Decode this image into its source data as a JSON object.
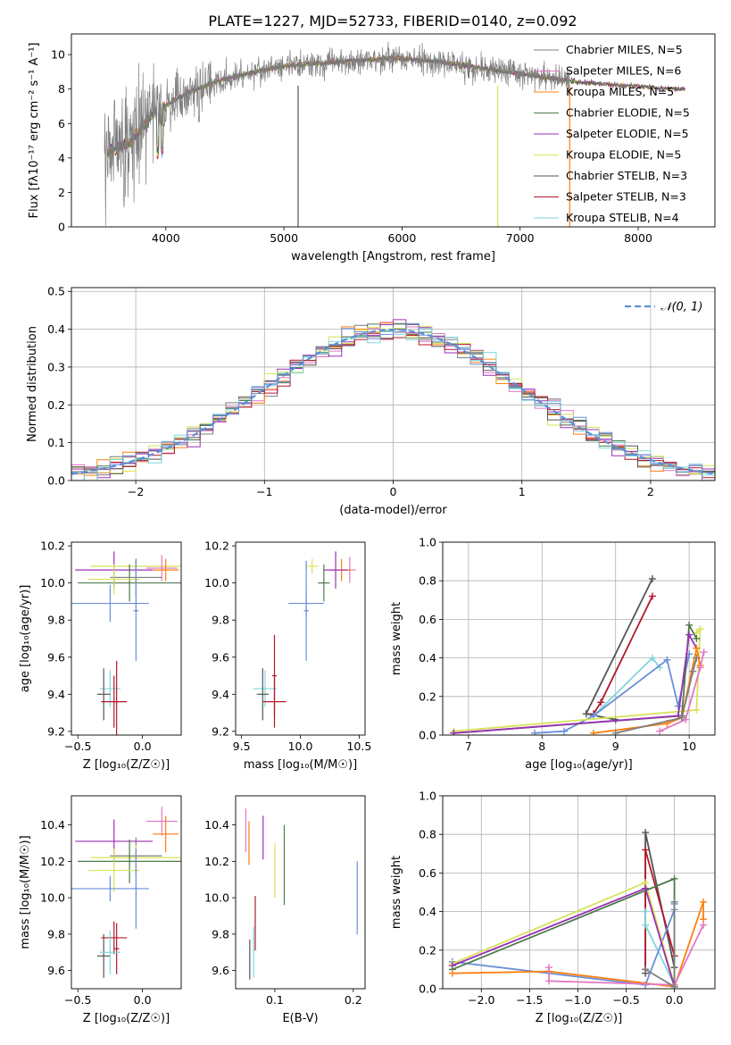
{
  "figure_title": "PLATE=1227, MJD=52733, FIBERID=0140, z=0.092",
  "colors": {
    "Chabrier MILES": "#7f7f7f",
    "Salpeter MILES": "#e377c2",
    "Kroupa MILES": "#ff7f0e",
    "Chabrier ELODIE": "#4c7a4c",
    "Salpeter ELODIE": "#9b30b5",
    "Kroupa ELODIE": "#d8e25a",
    "Chabrier STELIB": "#555555",
    "Salpeter STELIB": "#b2182b",
    "Kroupa STELIB": "#7fd7dd",
    "extra": "#6a8fd8",
    "normal": "#5a8fd6",
    "grid": "#b0b0b0"
  },
  "chart_data": [
    {
      "id": "spectrum",
      "type": "line",
      "title": "PLATE=1227, MJD=52733, FIBERID=0140, z=0.092",
      "xlabel": "wavelength [Angstrom, rest frame]",
      "ylabel": "Flux [fλ10⁻¹⁷ erg cm⁻² s⁻¹ A⁻¹]",
      "xlim": [
        3200,
        8650
      ],
      "ylim": [
        0,
        11.2
      ],
      "xticks": [
        "4000",
        "5000",
        "6000",
        "7000",
        "8000"
      ],
      "yticks": [
        "0",
        "2",
        "4",
        "6",
        "8",
        "10"
      ],
      "grid": false,
      "legend_position": "right",
      "legend": [
        "Chabrier MILES, N_SSP=5",
        "Salpeter MILES, N_SSP=6",
        "Kroupa MILES, N_SSP=5",
        "Chabrier ELODIE, N_SSP=5",
        "Salpeter ELODIE, N_SSP=5",
        "Kroupa ELODIE, N_SSP=5",
        "Chabrier STELIB, N_SSP=3",
        "Salpeter STELIB, N_SSP=3",
        "Kroupa STELIB, N_SSP=4"
      ],
      "continuum_x": [
        3500,
        3700,
        3900,
        4100,
        4300,
        4500,
        4700,
        4900,
        5100,
        5300,
        5500,
        5700,
        5900,
        6100,
        6300,
        6500,
        6700,
        6900,
        7100,
        7300,
        7500,
        7700,
        7900,
        8100,
        8300
      ],
      "continuum_y": [
        4.3,
        4.9,
        6.6,
        7.5,
        8.1,
        8.6,
        8.9,
        9.2,
        9.4,
        9.5,
        9.6,
        9.7,
        9.8,
        9.7,
        9.6,
        9.4,
        9.2,
        9.0,
        8.8,
        8.6,
        8.4,
        8.3,
        8.2,
        8.1,
        8.0
      ]
    },
    {
      "id": "residual_hist",
      "type": "line",
      "xlabel": "(data-model)/error",
      "ylabel": "Normed distribution",
      "xlim": [
        -2.5,
        2.5
      ],
      "ylim": [
        0,
        0.51
      ],
      "xticks": [
        "−2",
        "−1",
        "0",
        "1",
        "2"
      ],
      "yticks": [
        "0.0",
        "0.1",
        "0.2",
        "0.3",
        "0.4",
        "0.5"
      ],
      "grid": true,
      "legend_position": "top-right",
      "legend": [
        "𝒩(0, 1)"
      ],
      "curve": "normal(0,1) density"
    },
    {
      "id": "age_vs_Z",
      "type": "scatter",
      "xlabel": "Z [log₁₀(Z/Z☉)]",
      "ylabel": "age  [log₁₀(age/yr)]",
      "xlim": [
        -0.55,
        0.3
      ],
      "ylim": [
        9.18,
        10.22
      ],
      "xticks": [
        "−0.5",
        "0.0"
      ],
      "yticks": [
        "9.2",
        "9.4",
        "9.6",
        "9.8",
        "10.0",
        "10.2"
      ],
      "points": [
        {
          "x": -0.05,
          "xerr": 0.35,
          "y": 10.09,
          "yerr": 0.04,
          "series": "Kroupa ELODIE"
        },
        {
          "x": 0.15,
          "xerr": 0.12,
          "y": 10.08,
          "yerr": 0.07,
          "series": "Salpeter MILES"
        },
        {
          "x": 0.18,
          "xerr": 0.1,
          "y": 10.07,
          "yerr": 0.06,
          "series": "Kroupa MILES"
        },
        {
          "x": -0.22,
          "xerr": 0.3,
          "y": 10.07,
          "yerr": 0.1,
          "series": "Salpeter ELODIE"
        },
        {
          "x": -0.1,
          "xerr": 0.4,
          "y": 10.0,
          "yerr": 0.1,
          "series": "Chabrier ELODIE"
        },
        {
          "x": -0.05,
          "xerr": 0.2,
          "y": 10.03,
          "yerr": 0.1,
          "series": "Chabrier MILES"
        },
        {
          "x": -0.22,
          "xerr": 0.2,
          "y": 10.02,
          "yerr": 0.08,
          "series": "Kroupa ELODIE"
        },
        {
          "x": -0.25,
          "xerr": 0.3,
          "y": 9.89,
          "yerr": 0.1,
          "series": "extra"
        },
        {
          "x": -0.05,
          "xerr": 0.02,
          "y": 9.85,
          "yerr": 0.27,
          "series": "extra"
        },
        {
          "x": -0.25,
          "xerr": 0.08,
          "y": 9.43,
          "yerr": 0.1,
          "series": "Kroupa STELIB"
        },
        {
          "x": -0.3,
          "xerr": 0.05,
          "y": 9.4,
          "yerr": 0.14,
          "series": "Chabrier STELIB"
        },
        {
          "x": -0.22,
          "xerr": 0.1,
          "y": 9.36,
          "yerr": 0.14,
          "series": "Salpeter STELIB"
        },
        {
          "x": -0.2,
          "xerr": 0.02,
          "y": 9.36,
          "yerr": 0.22,
          "series": "Salpeter STELIB"
        }
      ]
    },
    {
      "id": "age_vs_mass",
      "type": "scatter",
      "xlabel": "mass [log₁₀(M/M☉)]",
      "xlim": [
        9.45,
        10.55
      ],
      "ylim": [
        9.18,
        10.22
      ],
      "xticks": [
        "9.5",
        "10.0",
        "10.5"
      ],
      "yticks": [
        "9.2",
        "9.4",
        "9.6",
        "9.8",
        "10.0",
        "10.2"
      ],
      "points": [
        {
          "x": 10.1,
          "xerr": 0.05,
          "y": 10.09,
          "yerr": 0.04,
          "series": "Kroupa ELODIE"
        },
        {
          "x": 10.42,
          "xerr": 0.05,
          "y": 10.07,
          "yerr": 0.07,
          "series": "Salpeter MILES"
        },
        {
          "x": 10.35,
          "xerr": 0.08,
          "y": 10.07,
          "yerr": 0.06,
          "series": "Kroupa MILES"
        },
        {
          "x": 10.3,
          "xerr": 0.1,
          "y": 10.07,
          "yerr": 0.1,
          "series": "Salpeter ELODIE"
        },
        {
          "x": 10.2,
          "xerr": 0.05,
          "y": 10.0,
          "yerr": 0.1,
          "series": "Chabrier ELODIE"
        },
        {
          "x": 10.05,
          "xerr": 0.15,
          "y": 9.89,
          "yerr": 0.07,
          "series": "extra"
        },
        {
          "x": 10.05,
          "xerr": 0.02,
          "y": 9.85,
          "yerr": 0.27,
          "series": "extra"
        },
        {
          "x": 9.7,
          "xerr": 0.1,
          "y": 9.43,
          "yerr": 0.1,
          "series": "Kroupa STELIB"
        },
        {
          "x": 9.68,
          "xerr": 0.05,
          "y": 9.4,
          "yerr": 0.14,
          "series": "Chabrier STELIB"
        },
        {
          "x": 9.78,
          "xerr": 0.1,
          "y": 9.36,
          "yerr": 0.14,
          "series": "Salpeter STELIB"
        },
        {
          "x": 9.78,
          "xerr": 0.02,
          "y": 9.5,
          "yerr": 0.22,
          "series": "Salpeter STELIB"
        }
      ]
    },
    {
      "id": "weight_vs_age",
      "type": "line",
      "xlabel": "age  [log₁₀(age/yr)]",
      "ylabel": "mass weight",
      "xlim": [
        6.65,
        10.35
      ],
      "ylim": [
        0,
        1.0
      ],
      "xticks": [
        "7",
        "8",
        "9",
        "10"
      ],
      "yticks": [
        "0.0",
        "0.2",
        "0.4",
        "0.6",
        "0.8",
        "1.0"
      ],
      "grid": true,
      "series": [
        {
          "series": "Chabrier STELIB",
          "x": [
            9.0,
            8.6,
            9.5
          ],
          "y": [
            0.08,
            0.11,
            0.81
          ]
        },
        {
          "series": "Salpeter STELIB",
          "x": [
            8.7,
            8.8,
            9.5
          ],
          "y": [
            0.11,
            0.17,
            0.72
          ]
        },
        {
          "series": "Kroupa STELIB",
          "x": [
            8.7,
            9.5,
            9.6
          ],
          "y": [
            0.1,
            0.4,
            0.35
          ]
        },
        {
          "series": "extra",
          "x": [
            7.9,
            8.3,
            8.7,
            9.7,
            9.85,
            10.0
          ],
          "y": [
            0.01,
            0.02,
            0.1,
            0.39,
            0.15,
            0.42
          ]
        },
        {
          "series": "Kroupa ELODIE",
          "x": [
            6.8,
            10.1,
            10.15,
            10.1
          ],
          "y": [
            0.02,
            0.13,
            0.55,
            0.53
          ]
        },
        {
          "series": "Chabrier ELODIE",
          "x": [
            6.8,
            9.9,
            10.0,
            10.1
          ],
          "y": [
            0.01,
            0.1,
            0.57,
            0.5
          ]
        },
        {
          "series": "Salpeter ELODIE",
          "x": [
            6.8,
            9.85,
            10.0,
            10.1
          ],
          "y": [
            0.01,
            0.1,
            0.52,
            0.45
          ]
        },
        {
          "series": "Kroupa MILES",
          "x": [
            8.7,
            9.7,
            9.9,
            10.1,
            10.15
          ],
          "y": [
            0.01,
            0.06,
            0.09,
            0.45,
            0.36
          ]
        },
        {
          "series": "Salpeter MILES",
          "x": [
            9.6,
            9.95,
            10.15,
            10.2
          ],
          "y": [
            0.02,
            0.08,
            0.35,
            0.43
          ]
        },
        {
          "series": "Chabrier MILES",
          "x": [
            9.0,
            9.9,
            10.05,
            10.1
          ],
          "y": [
            0.01,
            0.09,
            0.33,
            0.4
          ]
        }
      ]
    },
    {
      "id": "mass_vs_Z",
      "type": "scatter",
      "xlabel": "Z [log₁₀(Z/Z☉)]",
      "ylabel": "mass [log₁₀(M/M☉)]",
      "xlim": [
        -0.55,
        0.3
      ],
      "ylim": [
        9.5,
        10.56
      ],
      "xticks": [
        "−0.5",
        "0.0"
      ],
      "yticks": [
        "9.6",
        "9.8",
        "10.0",
        "10.2",
        "10.4"
      ],
      "points": [
        {
          "x": 0.15,
          "xerr": 0.12,
          "y": 10.42,
          "yerr": 0.08,
          "series": "Salpeter MILES"
        },
        {
          "x": 0.18,
          "xerr": 0.1,
          "y": 10.35,
          "yerr": 0.1,
          "series": "Kroupa MILES"
        },
        {
          "x": -0.22,
          "xerr": 0.3,
          "y": 10.31,
          "yerr": 0.12,
          "series": "Salpeter ELODIE"
        },
        {
          "x": -0.05,
          "xerr": 0.2,
          "y": 10.23,
          "yerr": 0.1,
          "series": "Chabrier MILES"
        },
        {
          "x": -0.05,
          "xerr": 0.35,
          "y": 10.22,
          "yerr": 0.07,
          "series": "Kroupa ELODIE"
        },
        {
          "x": -0.1,
          "xerr": 0.4,
          "y": 10.2,
          "yerr": 0.12,
          "series": "Chabrier ELODIE"
        },
        {
          "x": -0.22,
          "xerr": 0.2,
          "y": 10.15,
          "yerr": 0.12,
          "series": "Kroupa ELODIE"
        },
        {
          "x": -0.25,
          "xerr": 0.3,
          "y": 10.05,
          "yerr": 0.07,
          "series": "extra"
        },
        {
          "x": -0.05,
          "xerr": 0.02,
          "y": 10.05,
          "yerr": 0.22,
          "series": "extra"
        },
        {
          "x": -0.22,
          "xerr": 0.1,
          "y": 9.78,
          "yerr": 0.09,
          "series": "Salpeter STELIB"
        },
        {
          "x": -0.2,
          "xerr": 0.02,
          "y": 9.72,
          "yerr": 0.14,
          "series": "Salpeter STELIB"
        },
        {
          "x": -0.3,
          "xerr": 0.05,
          "y": 9.68,
          "yerr": 0.12,
          "series": "Chabrier STELIB"
        },
        {
          "x": -0.25,
          "xerr": 0.08,
          "y": 9.7,
          "yerr": 0.12,
          "series": "Kroupa STELIB"
        }
      ]
    },
    {
      "id": "mass_vs_ebv",
      "type": "scatter",
      "xlabel": "E(B-V)",
      "xlim": [
        0.05,
        0.215
      ],
      "ylim": [
        9.5,
        10.56
      ],
      "xticks": [
        "0.1",
        "0.2"
      ],
      "yticks": [
        "9.6",
        "9.8",
        "10.0",
        "10.2",
        "10.4"
      ],
      "points": [
        {
          "x": 0.063,
          "y": 10.37,
          "yerr": 0.12,
          "series": "Salpeter MILES"
        },
        {
          "x": 0.067,
          "y": 10.3,
          "yerr": 0.12,
          "series": "Kroupa MILES"
        },
        {
          "x": 0.085,
          "y": 10.33,
          "yerr": 0.12,
          "series": "Salpeter ELODIE"
        },
        {
          "x": 0.1,
          "y": 10.15,
          "yerr": 0.15,
          "series": "Kroupa ELODIE"
        },
        {
          "x": 0.112,
          "y": 10.18,
          "yerr": 0.22,
          "series": "Chabrier ELODIE"
        },
        {
          "x": 0.205,
          "y": 10.0,
          "yerr": 0.2,
          "series": "extra"
        },
        {
          "x": 0.075,
          "y": 9.86,
          "yerr": 0.15,
          "series": "Salpeter STELIB"
        },
        {
          "x": 0.068,
          "y": 9.66,
          "yerr": 0.11,
          "series": "Chabrier STELIB"
        },
        {
          "x": 0.073,
          "y": 9.7,
          "yerr": 0.14,
          "series": "Kroupa STELIB"
        }
      ]
    },
    {
      "id": "weight_vs_Z",
      "type": "line",
      "xlabel": "Z [log₁₀(Z/Z☉)]",
      "ylabel": "mass weight",
      "xlim": [
        -2.4,
        0.42
      ],
      "ylim": [
        0,
        1.0
      ],
      "xticks": [
        "−2.0",
        "−1.5",
        "−1.0",
        "−0.5",
        "0.0"
      ],
      "yticks": [
        "0.0",
        "0.2",
        "0.4",
        "0.6",
        "0.8",
        "1.0"
      ],
      "grid": true,
      "series": [
        {
          "series": "Chabrier STELIB",
          "x": [
            -0.3,
            -0.3,
            0.0
          ],
          "y": [
            0.08,
            0.81,
            0.11
          ]
        },
        {
          "series": "Salpeter STELIB",
          "x": [
            -0.3,
            -0.3,
            0.0
          ],
          "y": [
            0.1,
            0.72,
            0.17
          ]
        },
        {
          "series": "Kroupa STELIB",
          "x": [
            -0.3,
            -0.3,
            0.0
          ],
          "y": [
            0.4,
            0.33,
            0.02
          ]
        },
        {
          "series": "extra",
          "x": [
            -2.3,
            -0.3,
            0.0,
            0.0
          ],
          "y": [
            0.14,
            0.02,
            0.41,
            0.44
          ]
        },
        {
          "series": "Kroupa ELODIE",
          "x": [
            -2.3,
            -0.3,
            0.0
          ],
          "y": [
            0.13,
            0.55,
            0.02
          ]
        },
        {
          "series": "Salpeter ELODIE",
          "x": [
            -2.3,
            -0.3,
            0.0
          ],
          "y": [
            0.12,
            0.52,
            0.01
          ]
        },
        {
          "series": "Chabrier ELODIE",
          "x": [
            -2.3,
            0.0,
            0.0
          ],
          "y": [
            0.1,
            0.57,
            0.01
          ]
        },
        {
          "series": "Kroupa MILES",
          "x": [
            -2.3,
            -1.3,
            0.0,
            0.3,
            0.3
          ],
          "y": [
            0.08,
            0.09,
            0.01,
            0.45,
            0.36
          ]
        },
        {
          "series": "Salpeter MILES",
          "x": [
            -1.3,
            -1.3,
            0.0,
            0.3
          ],
          "y": [
            0.11,
            0.04,
            0.02,
            0.33
          ]
        },
        {
          "series": "Chabrier MILES",
          "x": [
            -0.3,
            0.0,
            0.0
          ],
          "y": [
            0.1,
            0.01,
            0.45
          ]
        }
      ]
    }
  ]
}
